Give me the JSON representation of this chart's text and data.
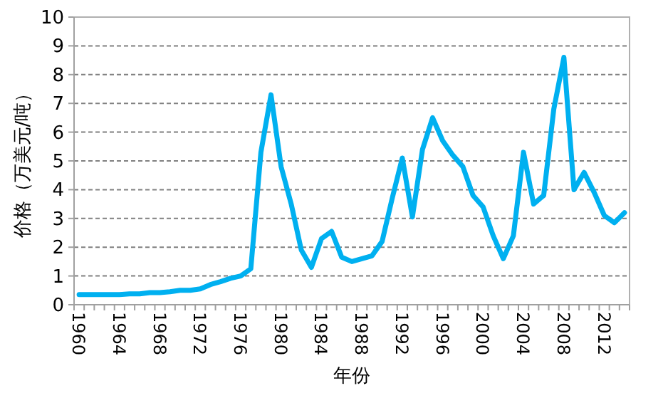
{
  "chart_data": {
    "type": "line",
    "xlabel": "年份",
    "ylabel": "价格（万美元/吨）",
    "categories": [
      "1960",
      null,
      null,
      null,
      "1964",
      null,
      null,
      null,
      "1968",
      null,
      null,
      null,
      "1972",
      null,
      null,
      null,
      "1976",
      null,
      null,
      null,
      "1980",
      null,
      null,
      null,
      "1984",
      null,
      null,
      null,
      "1988",
      null,
      null,
      null,
      "1992",
      null,
      null,
      null,
      "1996",
      null,
      null,
      null,
      "2000",
      null,
      null,
      null,
      "2004",
      null,
      null,
      null,
      "2008",
      null,
      null,
      null,
      "2012",
      null,
      null
    ],
    "series": [
      {
        "color": "#00b0f0",
        "values": [
          0.35,
          0.35,
          0.35,
          0.35,
          0.35,
          0.38,
          0.38,
          0.42,
          0.42,
          0.45,
          0.5,
          0.5,
          0.55,
          0.7,
          0.8,
          0.92,
          1.0,
          1.25,
          5.3,
          7.3,
          4.8,
          3.5,
          1.9,
          1.3,
          2.3,
          2.55,
          1.65,
          1.5,
          1.6,
          1.7,
          2.2,
          3.7,
          5.1,
          3.05,
          5.4,
          6.5,
          5.7,
          5.2,
          4.8,
          3.8,
          3.4,
          2.4,
          1.6,
          2.4,
          5.3,
          3.5,
          3.8,
          6.8,
          8.6,
          4.0,
          4.6,
          3.9,
          3.1,
          2.85,
          3.2
        ]
      }
    ],
    "ylim": [
      0,
      10
    ],
    "yticks": [
      0,
      1,
      2,
      3,
      4,
      5,
      6,
      7,
      8,
      9,
      10
    ],
    "grid": "y",
    "marker": "none",
    "line_style": "solid"
  }
}
